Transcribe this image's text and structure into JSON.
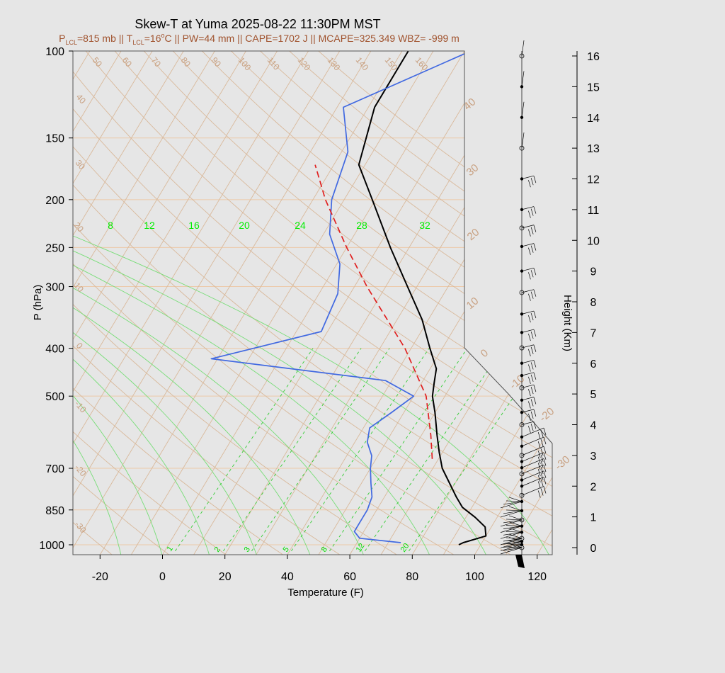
{
  "title": "Skew-T at Yuma 2025-08-22 11:30PM MST",
  "subtitle": {
    "plcl_p": "P",
    "plcl_sub": "LCL",
    "plcl_val": "=815 mb || T",
    "tlcl_sub": "LCL",
    "tlcl_val": "=16",
    "deg": "o",
    "rest": "C || PW=44 mm || CAPE=1702 J || MCAPE=325.349 WBZ= -999 m"
  },
  "chart_data": {
    "type": "line",
    "xlabel": "Temperature (F)",
    "ylabel": "P (hPa)",
    "right_label": "Height (Km)",
    "x_ticks": [
      "-20",
      "0",
      "20",
      "40",
      "60",
      "80",
      "100",
      "120"
    ],
    "p_ticks": [
      {
        "p": 100,
        "label": "100"
      },
      {
        "p": 150,
        "label": "150"
      },
      {
        "p": 200,
        "label": "200"
      },
      {
        "p": 250,
        "label": "250"
      },
      {
        "p": 300,
        "label": "300"
      },
      {
        "p": 400,
        "label": "400"
      },
      {
        "p": 500,
        "label": "500"
      },
      {
        "p": 700,
        "label": "700"
      },
      {
        "p": 850,
        "label": "850"
      },
      {
        "p": 1000,
        "label": "1000"
      }
    ],
    "height_ticks": [
      "0",
      "1",
      "2",
      "3",
      "4",
      "5",
      "6",
      "7",
      "8",
      "9",
      "10",
      "11",
      "12",
      "13",
      "14",
      "15",
      "16"
    ],
    "skewed_temp_labels": [
      "-30",
      "-20",
      "-10",
      "0",
      "10",
      "20",
      "30",
      "40"
    ],
    "dry_adiabat_labels": [
      "-30",
      "-20",
      "-10",
      "0",
      "10",
      "20",
      "30",
      "40",
      "50",
      "60",
      "70",
      "80",
      "90",
      "100",
      "110",
      "120",
      "130",
      "140",
      "150",
      "160"
    ],
    "mixing_ratio_labels": [
      "1",
      "2",
      "3",
      "5",
      "8",
      "12",
      "20"
    ],
    "moist_adiabat_labels": [
      "8",
      "12",
      "16",
      "20",
      "24",
      "28",
      "32"
    ],
    "temperature": [
      {
        "p": 1000,
        "t": 93
      },
      {
        "p": 990,
        "t": 94
      },
      {
        "p": 960,
        "t": 100
      },
      {
        "p": 920,
        "t": 98
      },
      {
        "p": 880,
        "t": 93
      },
      {
        "p": 840,
        "t": 87
      },
      {
        "p": 800,
        "t": 83
      },
      {
        "p": 700,
        "t": 73
      },
      {
        "p": 650,
        "t": 69
      },
      {
        "p": 600,
        "t": 65
      },
      {
        "p": 540,
        "t": 60
      },
      {
        "p": 500,
        "t": 56
      },
      {
        "p": 470,
        "t": 54
      },
      {
        "p": 440,
        "t": 52
      },
      {
        "p": 400,
        "t": 46
      },
      {
        "p": 350,
        "t": 38
      },
      {
        "p": 300,
        "t": 27
      },
      {
        "p": 250,
        "t": 14
      },
      {
        "p": 200,
        "t": -1
      },
      {
        "p": 170,
        "t": -12
      },
      {
        "p": 130,
        "t": -18
      },
      {
        "p": 100,
        "t": -18
      }
    ],
    "dewpoint": [
      {
        "p": 990,
        "t": 74
      },
      {
        "p": 970,
        "t": 60
      },
      {
        "p": 940,
        "t": 57
      },
      {
        "p": 900,
        "t": 57
      },
      {
        "p": 850,
        "t": 57
      },
      {
        "p": 800,
        "t": 56
      },
      {
        "p": 750,
        "t": 53
      },
      {
        "p": 700,
        "t": 50
      },
      {
        "p": 660,
        "t": 48
      },
      {
        "p": 620,
        "t": 44
      },
      {
        "p": 580,
        "t": 42
      },
      {
        "p": 540,
        "t": 46
      },
      {
        "p": 500,
        "t": 50
      },
      {
        "p": 465,
        "t": 38
      },
      {
        "p": 420,
        "t": -22
      },
      {
        "p": 370,
        "t": 8
      },
      {
        "p": 310,
        "t": 6
      },
      {
        "p": 270,
        "t": 1
      },
      {
        "p": 235,
        "t": -8
      },
      {
        "p": 200,
        "t": -14
      },
      {
        "p": 160,
        "t": -18
      },
      {
        "p": 130,
        "t": -28
      },
      {
        "p": 100,
        "t": 2
      }
    ],
    "parcel": [
      {
        "p": 670,
        "t": 68
      },
      {
        "p": 600,
        "t": 63
      },
      {
        "p": 500,
        "t": 54
      },
      {
        "p": 400,
        "t": 38
      },
      {
        "p": 300,
        "t": 14
      },
      {
        "p": 250,
        "t": 0
      },
      {
        "p": 200,
        "t": -16
      },
      {
        "p": 170,
        "t": -26
      }
    ],
    "wind_levels_km": [
      0.0,
      0.1,
      0.2,
      0.3,
      0.5,
      0.7,
      0.9,
      1.2,
      1.5,
      1.7,
      2.0,
      2.2,
      2.4,
      2.6,
      2.8,
      3.0,
      3.3,
      3.6,
      4.0,
      4.4,
      4.8,
      5.2,
      5.6,
      6.0,
      6.5,
      7.0,
      7.6,
      8.3,
      9.0,
      9.8,
      10.4,
      11.0,
      12.0,
      13.0,
      14.0,
      15.0,
      16.0
    ],
    "grid": true
  }
}
